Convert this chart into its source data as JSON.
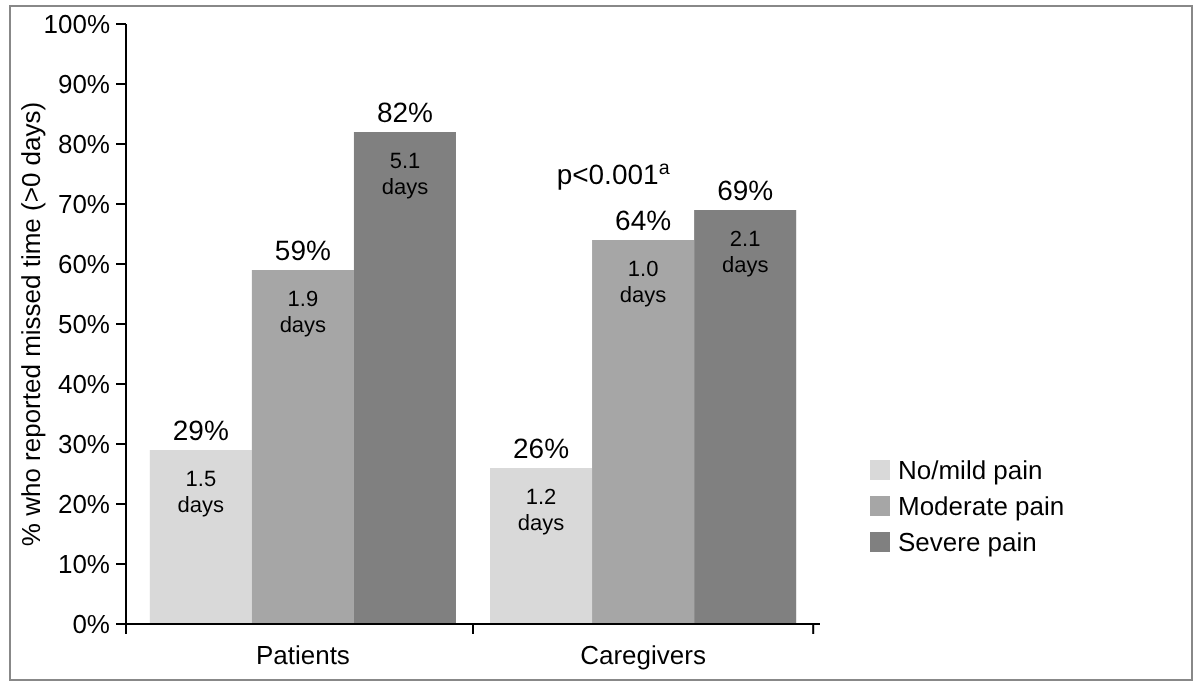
{
  "chart_data": {
    "type": "bar",
    "ylabel": "% who reported missed time (>0 days)",
    "categories": [
      "Patients",
      "Caregivers"
    ],
    "series": [
      {
        "name": "No/mild pain",
        "color": "#d9d9d9",
        "values": [
          29,
          26
        ],
        "value_labels": [
          "29%",
          "26%"
        ]
      },
      {
        "name": "Moderate pain",
        "color": "#a6a6a6",
        "values": [
          59,
          64
        ],
        "value_labels": [
          "59%",
          "64%"
        ]
      },
      {
        "name": "Severe pain",
        "color": "#808080",
        "values": [
          82,
          69
        ],
        "value_labels": [
          "82%",
          "69%"
        ]
      }
    ],
    "ylim": [
      0,
      100
    ],
    "yticks": [
      {
        "value": 0,
        "label": "0%"
      },
      {
        "value": 10,
        "label": "10%"
      },
      {
        "value": 20,
        "label": "20%"
      },
      {
        "value": 30,
        "label": "30%"
      },
      {
        "value": 40,
        "label": "40%"
      },
      {
        "value": 50,
        "label": "50%"
      },
      {
        "value": 60,
        "label": "60%"
      },
      {
        "value": 70,
        "label": "70%"
      },
      {
        "value": 80,
        "label": "80%"
      },
      {
        "value": 90,
        "label": "90%"
      },
      {
        "value": 100,
        "label": "100%"
      }
    ],
    "annotations": [
      "1.5 days",
      "1.2 days",
      "1.9 days",
      "1.0 days",
      "5.1 days",
      "2.1 days",
      "p<0.001$^{a}$"
    ],
    "grid": false,
    "legend": "right"
  }
}
